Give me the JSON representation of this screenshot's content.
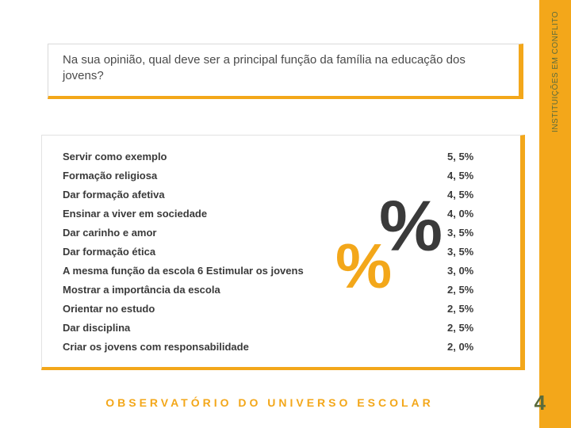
{
  "sideband": {
    "color": "#f3a71a",
    "vertical_label": "INSTITUIÇÕES EM CONFLITO",
    "label_color": "#5a6b3d"
  },
  "question": {
    "text": "Na sua opinião, qual deve ser a principal função da família na educação dos jovens?",
    "text_color": "#4a4a4a",
    "border_accent": "#f3a71a"
  },
  "table": {
    "rows": [
      {
        "label": "Servir como exemplo",
        "value": "5, 5%"
      },
      {
        "label": "Formação religiosa",
        "value": "4, 5%"
      },
      {
        "label": "Dar formação afetiva",
        "value": "4, 5%"
      },
      {
        "label": "Ensinar a viver em sociedade",
        "value": "4, 0%"
      },
      {
        "label": "Dar carinho e amor",
        "value": "3, 5%"
      },
      {
        "label": "Dar formação ética",
        "value": "3, 5%"
      },
      {
        "label": "A mesma função da escola 6 Estimular os jovens",
        "value": "3, 0%"
      },
      {
        "label": "Mostrar a importância da escola",
        "value": "2, 5%"
      },
      {
        "label": "Orientar no estudo",
        "value": "2, 5%"
      },
      {
        "label": "Dar disciplina",
        "value": "2, 5%"
      },
      {
        "label": "Criar os jovens com responsabilidade",
        "value": "2, 0%"
      }
    ],
    "decorative_percent_dark": "%",
    "decorative_percent_orange": "%",
    "dark_color": "#3a3a3a",
    "orange_color": "#f3a71a"
  },
  "footer": {
    "text": "OBSERVATÓRIO DO UNIVERSO ESCOLAR",
    "text_color": "#f3a71a",
    "page_number": "4",
    "page_number_color": "#5a6b3d"
  }
}
